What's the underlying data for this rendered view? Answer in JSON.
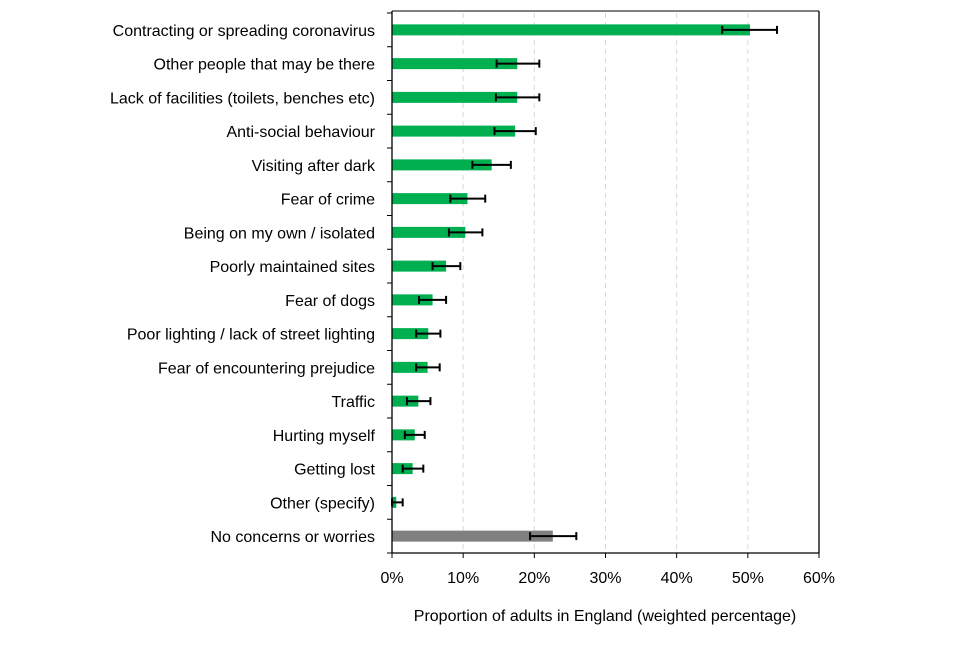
{
  "chart_data": {
    "type": "bar",
    "orientation": "horizontal",
    "title": "",
    "xlabel": "Proportion of adults in England (weighted percentage)",
    "ylabel": "",
    "xlim": [
      0,
      60
    ],
    "xticks": [
      "0%",
      "10%",
      "20%",
      "30%",
      "40%",
      "50%",
      "60%"
    ],
    "grid": "vertical dashed",
    "colors": {
      "main": "#00b050",
      "no_concerns": "#808080",
      "error_bar": "#000000",
      "grid": "#d9d9d9"
    },
    "categories": [
      "Contracting or spreading coronavirus",
      "Other people that may be there",
      "Lack of facilities (toilets, benches etc)",
      "Anti-social behaviour",
      "Visiting after dark",
      "Fear of crime",
      "Being on my own / isolated",
      "Poorly maintained sites",
      "Fear of dogs",
      "Poor lighting / lack of street lighting",
      "Fear of encountering prejudice",
      "Traffic ",
      "Hurting myself",
      "Getting lost",
      "Other (specify)",
      "No concerns or worries"
    ],
    "values": [
      50.3,
      17.6,
      17.6,
      17.3,
      14.0,
      10.6,
      10.3,
      7.6,
      5.7,
      5.1,
      5.0,
      3.7,
      3.2,
      2.9,
      0.6,
      22.6
    ],
    "error_low": [
      46.4,
      14.7,
      14.6,
      14.4,
      11.3,
      8.2,
      8.0,
      5.7,
      3.8,
      3.4,
      3.4,
      2.1,
      1.8,
      1.5,
      0.0,
      19.4
    ],
    "error_high": [
      54.1,
      20.7,
      20.7,
      20.2,
      16.7,
      13.1,
      12.7,
      9.6,
      7.6,
      6.8,
      6.7,
      5.4,
      4.6,
      4.4,
      1.5,
      25.9
    ],
    "highlight_gray": [
      false,
      false,
      false,
      false,
      false,
      false,
      false,
      false,
      false,
      false,
      false,
      false,
      false,
      false,
      false,
      true
    ]
  }
}
